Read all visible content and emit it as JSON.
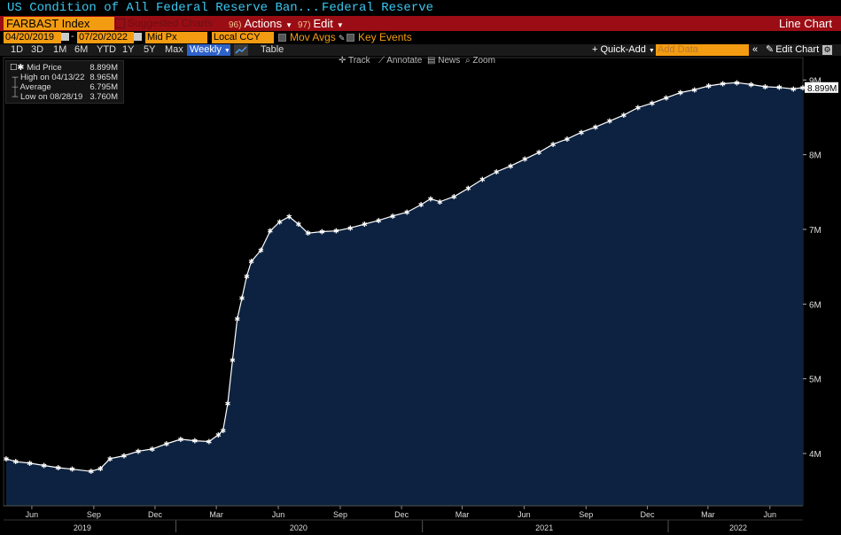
{
  "header": {
    "title": "US Condition of All Federal Reserve Ban...",
    "subtitle": "Federal Reserve",
    "ticker": "FARBAST Index",
    "suggested_label": "Suggested Charts",
    "actions_num": "96)",
    "actions_label": "Actions",
    "edit_num": "97)",
    "edit_label": "Edit",
    "chart_kind": "Line Chart"
  },
  "controls": {
    "start_date": "04/20/2019",
    "end_date": "07/20/2022",
    "price_field": "Mid Px",
    "currency": "Local CCY",
    "mov_avgs_label": "Mov Avgs",
    "key_events_label": "Key Events",
    "periods": [
      "1D",
      "3D",
      "1M",
      "6M",
      "YTD",
      "1Y",
      "5Y",
      "Max"
    ],
    "frequency": "Weekly",
    "table_label": "Table",
    "quick_add_label": "+ Quick-Add",
    "add_data_placeholder": "Add Data",
    "edit_chart_label": "Edit Chart"
  },
  "chart_tools": {
    "track": "Track",
    "annotate": "Annotate",
    "news": "News",
    "zoom": "Zoom"
  },
  "legend": {
    "mid_label": "Mid Price",
    "mid_value": "8.899M",
    "high_label": "High on 04/13/22",
    "high_value": "8.965M",
    "avg_label": "Average",
    "avg_value": "6.795M",
    "low_label": "Low on 08/28/19",
    "low_value": "3.760M"
  },
  "colors": {
    "area_fill": "#0c2240",
    "line": "#ffffff",
    "accent_orange": "#f39c12",
    "toolbar_red": "#9b0d14",
    "title_cyan": "#39c7f0"
  },
  "chart_data": {
    "type": "area",
    "series_name": "Mid Price",
    "last_value_label": "8.899M",
    "y_ticks": [
      {
        "v": 4.0,
        "label": "4M"
      },
      {
        "v": 5.0,
        "label": "5M"
      },
      {
        "v": 6.0,
        "label": "6M"
      },
      {
        "v": 7.0,
        "label": "7M"
      },
      {
        "v": 8.0,
        "label": "8M"
      },
      {
        "v": 9.0,
        "label": "9M"
      }
    ],
    "ylim": [
      3.3,
      9.3
    ],
    "xlim": [
      "2019-04-20",
      "2022-07-20"
    ],
    "x_month_ticks": [
      {
        "date": "2019-06-01",
        "label": "Jun"
      },
      {
        "date": "2019-09-01",
        "label": "Sep"
      },
      {
        "date": "2019-12-01",
        "label": "Dec"
      },
      {
        "date": "2020-03-01",
        "label": "Mar"
      },
      {
        "date": "2020-06-01",
        "label": "Jun"
      },
      {
        "date": "2020-09-01",
        "label": "Sep"
      },
      {
        "date": "2020-12-01",
        "label": "Dec"
      },
      {
        "date": "2021-03-01",
        "label": "Mar"
      },
      {
        "date": "2021-06-01",
        "label": "Jun"
      },
      {
        "date": "2021-09-01",
        "label": "Sep"
      },
      {
        "date": "2021-12-01",
        "label": "Dec"
      },
      {
        "date": "2022-03-01",
        "label": "Mar"
      },
      {
        "date": "2022-06-01",
        "label": "Jun"
      }
    ],
    "x_year_labels": [
      {
        "date": "2019-08-15",
        "label": "2019"
      },
      {
        "date": "2020-07-01",
        "label": "2020"
      },
      {
        "date": "2021-07-01",
        "label": "2021"
      },
      {
        "date": "2022-04-15",
        "label": "2022"
      }
    ],
    "x_year_separators": [
      "2020-01-01",
      "2021-01-01",
      "2022-01-01"
    ],
    "points": [
      [
        "2019-04-24",
        3.93
      ],
      [
        "2019-05-08",
        3.89
      ],
      [
        "2019-05-29",
        3.87
      ],
      [
        "2019-06-19",
        3.84
      ],
      [
        "2019-07-10",
        3.81
      ],
      [
        "2019-07-31",
        3.79
      ],
      [
        "2019-08-28",
        3.76
      ],
      [
        "2019-09-11",
        3.8
      ],
      [
        "2019-09-25",
        3.93
      ],
      [
        "2019-10-16",
        3.97
      ],
      [
        "2019-11-06",
        4.03
      ],
      [
        "2019-11-27",
        4.06
      ],
      [
        "2019-12-18",
        4.13
      ],
      [
        "2020-01-08",
        4.19
      ],
      [
        "2020-01-29",
        4.17
      ],
      [
        "2020-02-19",
        4.16
      ],
      [
        "2020-03-04",
        4.25
      ],
      [
        "2020-03-11",
        4.31
      ],
      [
        "2020-03-18",
        4.67
      ],
      [
        "2020-03-25",
        5.25
      ],
      [
        "2020-04-01",
        5.8
      ],
      [
        "2020-04-08",
        6.08
      ],
      [
        "2020-04-15",
        6.37
      ],
      [
        "2020-04-22",
        6.57
      ],
      [
        "2020-05-06",
        6.72
      ],
      [
        "2020-05-20",
        6.98
      ],
      [
        "2020-06-03",
        7.1
      ],
      [
        "2020-06-17",
        7.17
      ],
      [
        "2020-07-01",
        7.07
      ],
      [
        "2020-07-15",
        6.95
      ],
      [
        "2020-08-05",
        6.97
      ],
      [
        "2020-08-26",
        6.98
      ],
      [
        "2020-09-16",
        7.02
      ],
      [
        "2020-10-07",
        7.07
      ],
      [
        "2020-10-28",
        7.12
      ],
      [
        "2020-11-18",
        7.18
      ],
      [
        "2020-12-09",
        7.23
      ],
      [
        "2020-12-30",
        7.33
      ],
      [
        "2021-01-13",
        7.41
      ],
      [
        "2021-01-27",
        7.37
      ],
      [
        "2021-02-17",
        7.44
      ],
      [
        "2021-03-10",
        7.55
      ],
      [
        "2021-03-31",
        7.67
      ],
      [
        "2021-04-21",
        7.77
      ],
      [
        "2021-05-12",
        7.85
      ],
      [
        "2021-06-02",
        7.94
      ],
      [
        "2021-06-23",
        8.03
      ],
      [
        "2021-07-14",
        8.14
      ],
      [
        "2021-08-04",
        8.21
      ],
      [
        "2021-08-25",
        8.3
      ],
      [
        "2021-09-15",
        8.37
      ],
      [
        "2021-10-06",
        8.45
      ],
      [
        "2021-10-27",
        8.53
      ],
      [
        "2021-11-17",
        8.63
      ],
      [
        "2021-12-08",
        8.69
      ],
      [
        "2021-12-29",
        8.76
      ],
      [
        "2022-01-19",
        8.83
      ],
      [
        "2022-02-09",
        8.87
      ],
      [
        "2022-03-02",
        8.92
      ],
      [
        "2022-03-23",
        8.95
      ],
      [
        "2022-04-13",
        8.965
      ],
      [
        "2022-05-04",
        8.94
      ],
      [
        "2022-05-25",
        8.91
      ],
      [
        "2022-06-15",
        8.9
      ],
      [
        "2022-07-06",
        8.88
      ],
      [
        "2022-07-20",
        8.899
      ]
    ]
  }
}
